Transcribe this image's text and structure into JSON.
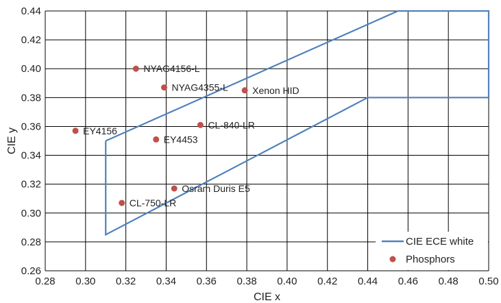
{
  "chart_data": {
    "type": "scatter",
    "xlabel": "CIE x",
    "ylabel": "CIE y",
    "xlim": [
      0.28,
      0.5
    ],
    "ylim": [
      0.26,
      0.44
    ],
    "x_ticks": [
      "0.28",
      "0.30",
      "0.32",
      "0.34",
      "0.36",
      "0.38",
      "0.40",
      "0.42",
      "0.44",
      "0.46",
      "0.48",
      "0.50"
    ],
    "y_ticks": [
      "0.26",
      "0.28",
      "0.30",
      "0.32",
      "0.34",
      "0.36",
      "0.38",
      "0.40",
      "0.42",
      "0.44"
    ],
    "grid": true,
    "legend_position": "bottom-right",
    "series": [
      {
        "name": "CIE ECE white",
        "kind": "line",
        "color": "#4f81bd",
        "points": [
          {
            "x": 0.31,
            "y": 0.35
          },
          {
            "x": 0.455,
            "y": 0.44
          },
          {
            "x": 0.5,
            "y": 0.44
          },
          {
            "x": 0.5,
            "y": 0.38
          },
          {
            "x": 0.44,
            "y": 0.38
          },
          {
            "x": 0.31,
            "y": 0.285
          },
          {
            "x": 0.31,
            "y": 0.35
          }
        ]
      },
      {
        "name": "Phosphors",
        "kind": "scatter",
        "color": "#c0504d",
        "points": [
          {
            "x": 0.325,
            "y": 0.4,
            "label": "NYAG4156-L"
          },
          {
            "x": 0.339,
            "y": 0.387,
            "label": "NYAG4355-L"
          },
          {
            "x": 0.379,
            "y": 0.385,
            "label": "Xenon HID"
          },
          {
            "x": 0.357,
            "y": 0.361,
            "label": "CL-840-LR"
          },
          {
            "x": 0.295,
            "y": 0.357,
            "label": "EY4156"
          },
          {
            "x": 0.335,
            "y": 0.351,
            "label": "EY4453"
          },
          {
            "x": 0.344,
            "y": 0.317,
            "label": "Osram Duris E5"
          },
          {
            "x": 0.318,
            "y": 0.307,
            "label": "CL-750-LR"
          }
        ]
      }
    ]
  }
}
